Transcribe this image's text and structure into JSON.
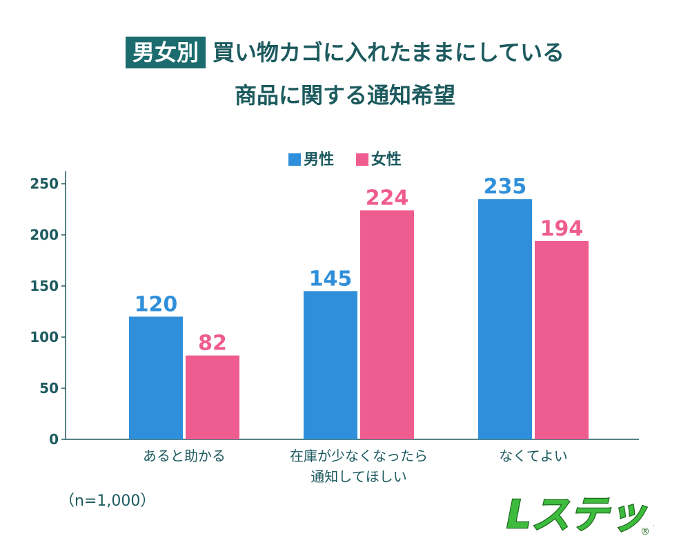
{
  "title": {
    "badge": "男女別",
    "line1": "買い物カゴに入れたままにしている",
    "line2": "商品に関する通知希望"
  },
  "note": "（n=1,000）",
  "logo": {
    "text": "Lステップ",
    "mark": "®"
  },
  "colors": {
    "male": "#2f8fda",
    "female": "#ef5c8f",
    "axis": "#1c5a5e",
    "text": "#1c5a5e"
  },
  "chart_data": {
    "type": "bar",
    "categories": [
      [
        "あると助かる"
      ],
      [
        "在庫が少なくなったら",
        "通知してほしい"
      ],
      [
        "なくてよい"
      ]
    ],
    "series": [
      {
        "name": "男性",
        "values": [
          120,
          145,
          235
        ]
      },
      {
        "name": "女性",
        "values": [
          82,
          224,
          194
        ]
      }
    ],
    "yticks": [
      0,
      50,
      100,
      150,
      200,
      250
    ],
    "ylim": [
      0,
      250
    ],
    "legend_position": "top-center",
    "grid": false,
    "data_labels": true
  }
}
